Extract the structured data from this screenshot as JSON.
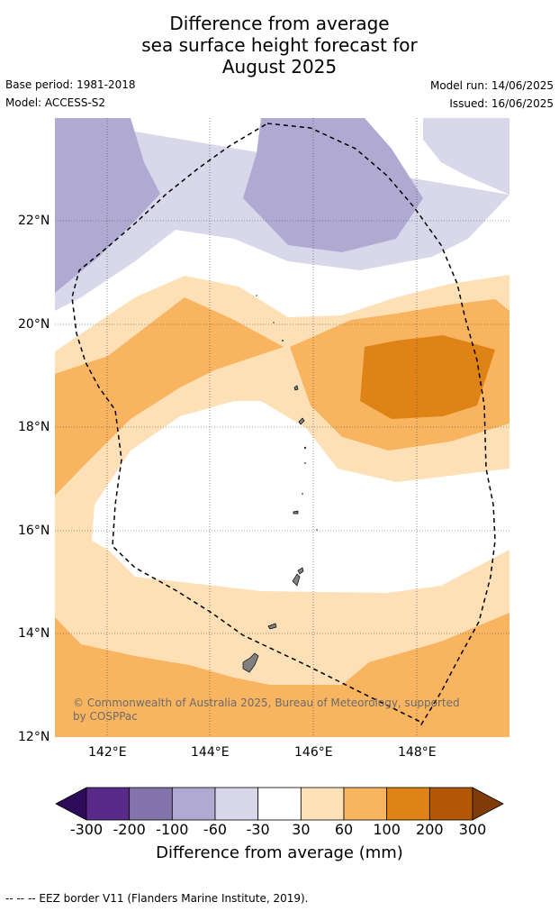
{
  "title": {
    "line1": "Difference from average",
    "line2": "sea surface height forecast for",
    "line3": "August 2025"
  },
  "meta": {
    "base_period": "Base period: 1981-2018",
    "model": "Model: ACCESS-S2",
    "model_run": "Model run: 14/06/2025",
    "issued": "Issued: 16/06/2025"
  },
  "map": {
    "lon_ticks": [
      "142°E",
      "144°E",
      "146°E",
      "148°E"
    ],
    "lat_ticks": [
      "22°N",
      "20°N",
      "18°N",
      "16°N",
      "14°N",
      "12°N"
    ],
    "copyright_line1": "© Commonwealth of Australia 2025, Bureau of Meteorology, supported",
    "copyright_line2": "by COSPPac",
    "extent": {
      "lon": [
        141,
        149.8
      ],
      "lat": [
        12,
        24
      ]
    }
  },
  "colorbar": {
    "labels": [
      "-300",
      "-200",
      "-100",
      "-60",
      "-30",
      "30",
      "60",
      "100",
      "200",
      "300"
    ],
    "colors": [
      "#2d0a5a",
      "#5a2a8a",
      "#8474ad",
      "#b0aad3",
      "#d9d8ea",
      "#ffffff",
      "#fde0b6",
      "#f9b460",
      "#e08316",
      "#b35806",
      "#7f3b08"
    ],
    "title": "Difference from average (mm)"
  },
  "footnote": "--  --  -- EEZ border V11 (Flanders Marine Institute, 2019)."
}
